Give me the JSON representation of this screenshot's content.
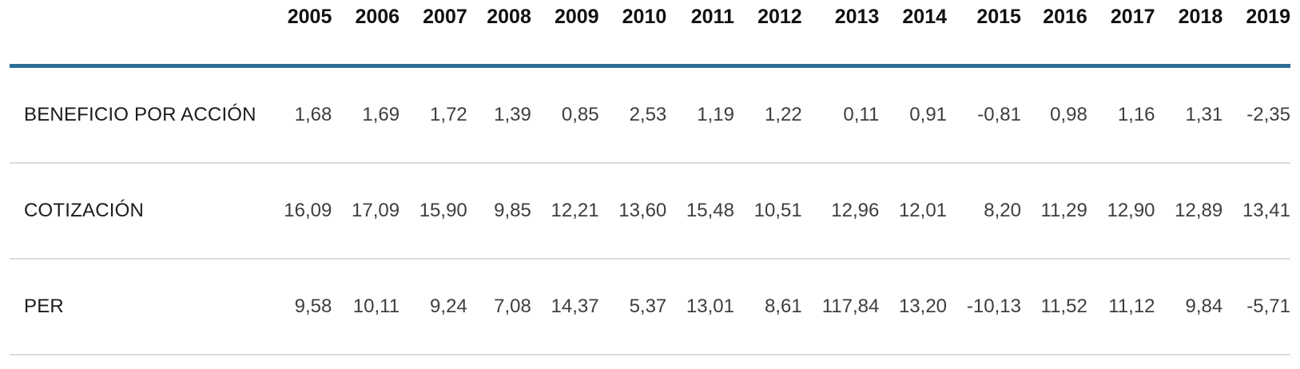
{
  "chart_data": {
    "type": "table",
    "categories": [
      "2005",
      "2006",
      "2007",
      "2008",
      "2009",
      "2010",
      "2011",
      "2012",
      "2013",
      "2014",
      "2015",
      "2016",
      "2017",
      "2018",
      "2019"
    ],
    "series": [
      {
        "name": "BENEFICIO POR ACCIÓN",
        "values": [
          1.68,
          1.69,
          1.72,
          1.39,
          0.85,
          2.53,
          1.19,
          1.22,
          0.11,
          0.91,
          -0.81,
          0.98,
          1.16,
          1.31,
          -2.35
        ]
      },
      {
        "name": "COTIZACIÓN",
        "values": [
          16.09,
          17.09,
          15.9,
          9.85,
          12.21,
          13.6,
          15.48,
          10.51,
          12.96,
          12.01,
          8.2,
          11.29,
          12.9,
          12.89,
          13.41
        ]
      },
      {
        "name": "PER",
        "values": [
          9.58,
          10.11,
          9.24,
          7.08,
          14.37,
          5.37,
          13.01,
          8.61,
          117.84,
          13.2,
          -10.13,
          11.52,
          11.12,
          9.84,
          -5.71
        ]
      }
    ],
    "title": "",
    "number_format": "es-decimal-comma-2",
    "layout": {
      "header_position": "top",
      "value_alignment": "right",
      "grid": "horizontal-dividers-only"
    },
    "colors": {
      "header_rule": "#2d6d96",
      "row_divider": "#dcdcdc",
      "header_text": "#111111",
      "label_text": "#1b1b1b",
      "value_text": "#3e3e3e",
      "background": "#ffffff"
    }
  }
}
